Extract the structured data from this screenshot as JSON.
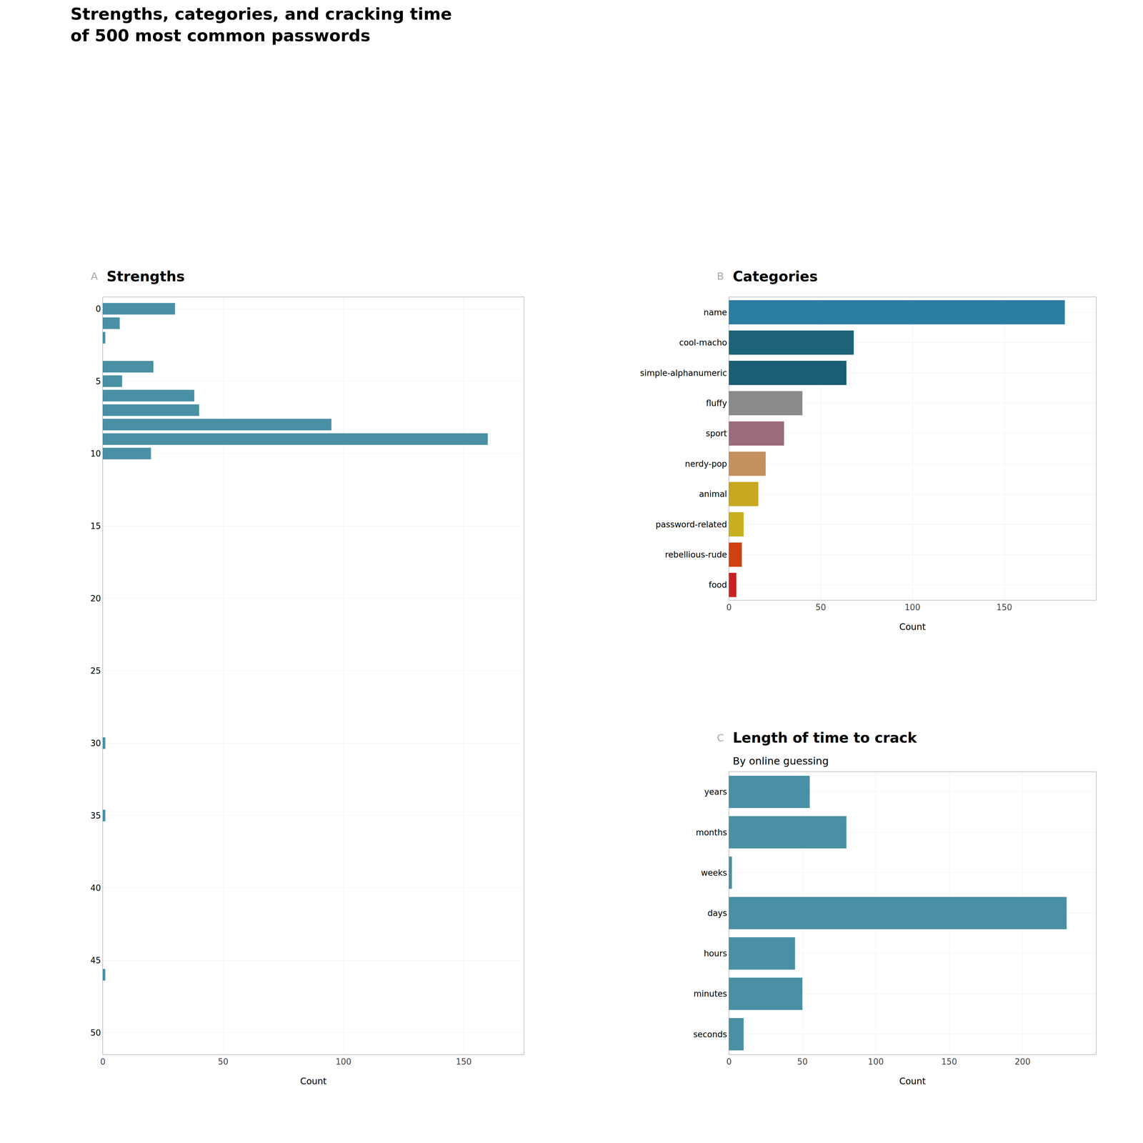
{
  "title": "Strengths, categories, and cracking time\nof 500 most common passwords",
  "chart_data": [
    {
      "type": "bar",
      "orientation": "horizontal",
      "title": "Strengths",
      "annotations": [
        "A"
      ],
      "y": [
        0,
        1,
        2,
        3,
        4,
        5,
        6,
        7,
        8,
        9,
        10,
        30,
        35,
        46
      ],
      "values": [
        30,
        7,
        1,
        0,
        21,
        8,
        38,
        40,
        95,
        160,
        20,
        1,
        1,
        1
      ],
      "color": "#4a90a4",
      "xlabel": "Count",
      "xlim": [
        0,
        175
      ],
      "xticks": [
        0,
        50,
        100,
        150
      ],
      "ylim": [
        -0.8,
        51.5
      ],
      "yticks": [
        0,
        5,
        10,
        15,
        20,
        25,
        30,
        35,
        40,
        45,
        50
      ],
      "grid": true
    },
    {
      "type": "bar",
      "orientation": "horizontal",
      "title": "Categories",
      "annotations": [
        "B"
      ],
      "categories": [
        "name",
        "cool-macho",
        "simple-alphanumeric",
        "fluffy",
        "sport",
        "nerdy-pop",
        "animal",
        "password-related",
        "rebellious-rude",
        "food"
      ],
      "values": [
        183,
        68,
        64,
        40,
        30,
        20,
        16,
        8,
        7,
        4
      ],
      "colors": [
        "#2b7ea1",
        "#1e6478",
        "#1b5e73",
        "#8a8a8a",
        "#9b6b7c",
        "#c49060",
        "#c8a820",
        "#c8b020",
        "#d04010",
        "#cc2020"
      ],
      "xlabel": "Count",
      "xlim": [
        0,
        200
      ],
      "xticks": [
        0,
        50,
        100,
        150
      ],
      "grid": true
    },
    {
      "type": "bar",
      "orientation": "horizontal",
      "title": "Length of time to crack",
      "subtitle": "By online guessing",
      "annotations": [
        "C"
      ],
      "categories": [
        "years",
        "months",
        "weeks",
        "days",
        "hours",
        "minutes",
        "seconds"
      ],
      "values": [
        55,
        80,
        2,
        230,
        45,
        50,
        10
      ],
      "color": "#4a90a4",
      "xlabel": "Count",
      "xlim": [
        0,
        250
      ],
      "xticks": [
        0,
        50,
        100,
        150,
        200
      ],
      "grid": true
    }
  ]
}
